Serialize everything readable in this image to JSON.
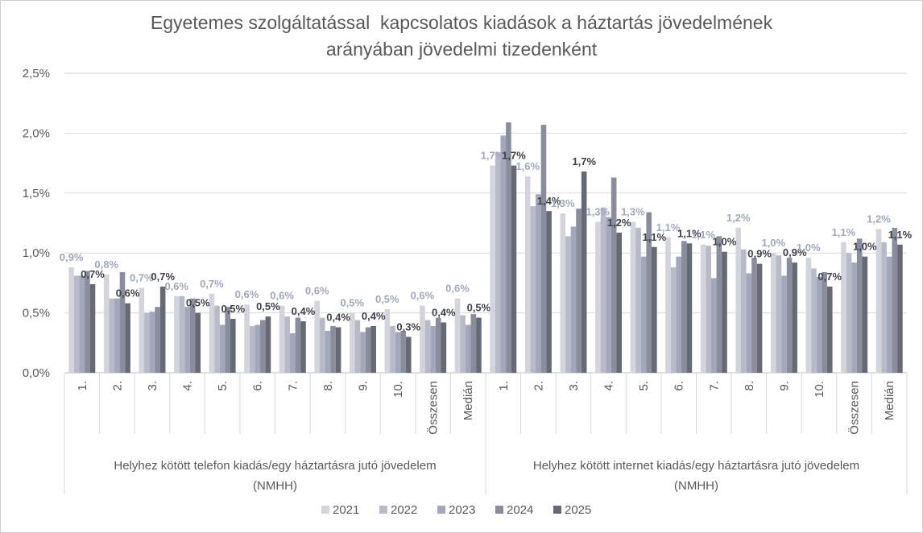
{
  "chart_data": {
    "type": "bar",
    "title_lines": [
      "Egyetemes szolgáltatással  kapcsolatos kiadások a háztartás jövedelmének",
      "arányában jövedelmi tizedenként"
    ],
    "ylim": [
      0,
      2.5
    ],
    "yticks": [
      "0,0%",
      "0,5%",
      "1,0%",
      "1,5%",
      "2,0%",
      "2,5%"
    ],
    "grid": true,
    "legend_position": "bottom",
    "series_names": [
      "2021",
      "2022",
      "2023",
      "2024",
      "2025"
    ],
    "colors": [
      "#d4d5dc",
      "#b9bac8",
      "#a3a7bb",
      "#8a8d9c",
      "#676a75"
    ],
    "label_colors": [
      "#a3a7bb",
      "#a3a7bb",
      "#a3a7bb",
      "#a3a7bb",
      "#3f4148"
    ],
    "groups": [
      {
        "name": "Helyhez kötött telefon kiadás/egy háztartásra jutó jövedelem (NMHH)",
        "name_lines": [
          "Helyhez kötött telefon kiadás/egy háztartásra jutó jövedelem",
          "(NMHH)"
        ],
        "categories": [
          "1.",
          "2.",
          "3.",
          "4.",
          "5.",
          "6.",
          "7.",
          "8.",
          "9.",
          "10.",
          "Összesen",
          "Medián"
        ],
        "series": [
          {
            "name": "2021",
            "values": [
              0.88,
              0.82,
              0.71,
              0.64,
              0.66,
              0.57,
              0.56,
              0.6,
              0.5,
              0.53,
              0.56,
              0.62
            ]
          },
          {
            "name": "2022",
            "values": [
              0.81,
              0.62,
              0.5,
              0.64,
              0.56,
              0.39,
              0.47,
              0.46,
              0.44,
              0.39,
              0.44,
              0.48
            ]
          },
          {
            "name": "2023",
            "values": [
              0.81,
              0.62,
              0.51,
              0.55,
              0.4,
              0.4,
              0.33,
              0.35,
              0.34,
              0.34,
              0.39,
              0.4
            ]
          },
          {
            "name": "2024",
            "values": [
              0.85,
              0.84,
              0.55,
              0.62,
              0.55,
              0.44,
              0.46,
              0.39,
              0.38,
              0.35,
              0.46,
              0.49
            ]
          },
          {
            "name": "2025",
            "values": [
              0.74,
              0.58,
              0.72,
              0.5,
              0.45,
              0.47,
              0.43,
              0.38,
              0.39,
              0.3,
              0.42,
              0.46
            ]
          }
        ],
        "data_labels": [
          {
            "category": 0,
            "series": 0,
            "text": "0,9%"
          },
          {
            "category": 0,
            "series": 4,
            "text": "0,7%"
          },
          {
            "category": 1,
            "series": 0,
            "text": "0,8%"
          },
          {
            "category": 1,
            "series": 4,
            "text": "0,6%"
          },
          {
            "category": 2,
            "series": 0,
            "text": "0,7%"
          },
          {
            "category": 2,
            "series": 4,
            "text": "0,7%"
          },
          {
            "category": 3,
            "series": 0,
            "text": "0,6%"
          },
          {
            "category": 3,
            "series": 4,
            "text": "0,5%"
          },
          {
            "category": 4,
            "series": 0,
            "text": "0,7%"
          },
          {
            "category": 4,
            "series": 4,
            "text": "0,5%"
          },
          {
            "category": 5,
            "series": 0,
            "text": "0,6%"
          },
          {
            "category": 5,
            "series": 4,
            "text": "0,5%"
          },
          {
            "category": 6,
            "series": 0,
            "text": "0,6%"
          },
          {
            "category": 6,
            "series": 4,
            "text": "0,4%"
          },
          {
            "category": 7,
            "series": 0,
            "text": "0,6%"
          },
          {
            "category": 7,
            "series": 4,
            "text": "0,4%"
          },
          {
            "category": 8,
            "series": 0,
            "text": "0,5%"
          },
          {
            "category": 8,
            "series": 4,
            "text": "0,4%"
          },
          {
            "category": 9,
            "series": 0,
            "text": "0,5%"
          },
          {
            "category": 9,
            "series": 4,
            "text": "0,3%"
          },
          {
            "category": 10,
            "series": 0,
            "text": "0,6%"
          },
          {
            "category": 10,
            "series": 4,
            "text": "0,4%"
          },
          {
            "category": 11,
            "series": 0,
            "text": "0,6%"
          },
          {
            "category": 11,
            "series": 4,
            "text": "0,5%"
          }
        ]
      },
      {
        "name": "Helyhez kötött internet kiadás/egy háztartásra jutó jövedelem (NMHH)",
        "name_lines": [
          "Helyhez kötött internet kiadás/egy háztartásra jutó jövedelem",
          "(NMHH)"
        ],
        "categories": [
          "1.",
          "2.",
          "3.",
          "4.",
          "5.",
          "6.",
          "7.",
          "8.",
          "9.",
          "10.",
          "Összesen",
          "Medián"
        ],
        "series": [
          {
            "name": "2021",
            "values": [
              1.73,
              1.64,
              1.33,
              1.26,
              1.26,
              1.13,
              1.07,
              1.21,
              1.0,
              0.96,
              1.09,
              1.2
            ]
          },
          {
            "name": "2022",
            "values": [
              1.84,
              1.39,
              1.14,
              1.38,
              1.21,
              0.88,
              1.06,
              1.03,
              0.98,
              0.87,
              1.0,
              1.09
            ]
          },
          {
            "name": "2023",
            "values": [
              1.98,
              1.49,
              1.22,
              1.3,
              0.97,
              0.97,
              0.79,
              0.83,
              0.81,
              0.8,
              0.92,
              0.97
            ]
          },
          {
            "name": "2024",
            "values": [
              2.09,
              2.07,
              1.37,
              1.63,
              1.34,
              1.1,
              1.14,
              0.96,
              0.96,
              0.84,
              1.12,
              1.21
            ]
          },
          {
            "name": "2025",
            "values": [
              1.73,
              1.35,
              1.68,
              1.17,
              1.05,
              1.08,
              1.01,
              0.91,
              0.92,
              0.72,
              0.97,
              1.07
            ]
          }
        ],
        "data_labels": [
          {
            "category": 0,
            "series": 0,
            "text": "1,7%"
          },
          {
            "category": 0,
            "series": 4,
            "text": "1,7%"
          },
          {
            "category": 1,
            "series": 0,
            "text": "1,6%"
          },
          {
            "category": 1,
            "series": 4,
            "text": "1,4%"
          },
          {
            "category": 2,
            "series": 0,
            "text": "1,3%"
          },
          {
            "category": 2,
            "series": 4,
            "text": "1,7%"
          },
          {
            "category": 3,
            "series": 0,
            "text": "1,3%"
          },
          {
            "category": 3,
            "series": 4,
            "text": "1,2%"
          },
          {
            "category": 4,
            "series": 0,
            "text": "1,3%"
          },
          {
            "category": 4,
            "series": 4,
            "text": "1,1%"
          },
          {
            "category": 5,
            "series": 0,
            "text": "1,1%"
          },
          {
            "category": 5,
            "series": 4,
            "text": "1,1%"
          },
          {
            "category": 6,
            "series": 0,
            "text": "1,1%"
          },
          {
            "category": 6,
            "series": 4,
            "text": "1,0%"
          },
          {
            "category": 7,
            "series": 0,
            "text": "1,2%"
          },
          {
            "category": 7,
            "series": 4,
            "text": "0,9%"
          },
          {
            "category": 8,
            "series": 0,
            "text": "1,0%"
          },
          {
            "category": 8,
            "series": 4,
            "text": "0,9%"
          },
          {
            "category": 9,
            "series": 0,
            "text": "1,0%"
          },
          {
            "category": 9,
            "series": 4,
            "text": "0,7%"
          },
          {
            "category": 10,
            "series": 0,
            "text": "1,1%"
          },
          {
            "category": 10,
            "series": 4,
            "text": "1,0%"
          },
          {
            "category": 11,
            "series": 0,
            "text": "1,2%"
          },
          {
            "category": 11,
            "series": 4,
            "text": "1,1%"
          }
        ]
      }
    ]
  }
}
